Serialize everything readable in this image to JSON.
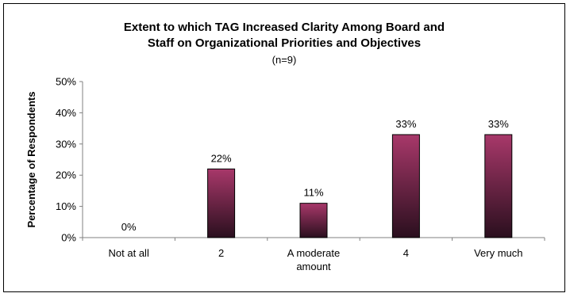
{
  "chart_data": {
    "type": "bar",
    "title_lines": [
      "Extent to which TAG Increased Clarity Among Board and",
      "Staff on Organizational Priorities and Objectives"
    ],
    "subtitle": "(n=9)",
    "ylabel": "Percentage of Respondents",
    "xlabel": "",
    "categories": [
      [
        "Not at all"
      ],
      [
        "2"
      ],
      [
        "A moderate",
        "amount"
      ],
      [
        "4"
      ],
      [
        "Very much"
      ]
    ],
    "values": [
      0,
      22,
      11,
      33,
      33
    ],
    "data_labels": [
      "0%",
      "22%",
      "11%",
      "33%",
      "33%"
    ],
    "ylim": [
      0,
      50
    ],
    "yticks": [
      {
        "value": 0,
        "label": "0%"
      },
      {
        "value": 10,
        "label": "10%"
      },
      {
        "value": 20,
        "label": "20%"
      },
      {
        "value": 30,
        "label": "30%"
      },
      {
        "value": 40,
        "label": "40%"
      },
      {
        "value": 50,
        "label": "50%"
      }
    ],
    "grid": false,
    "legend": "none",
    "colors": {
      "bar_top": "#a8386a",
      "bar_bottom": "#2a0f1e",
      "bar_outline": "#000000",
      "axis": "#808080",
      "text": "#000000"
    }
  }
}
